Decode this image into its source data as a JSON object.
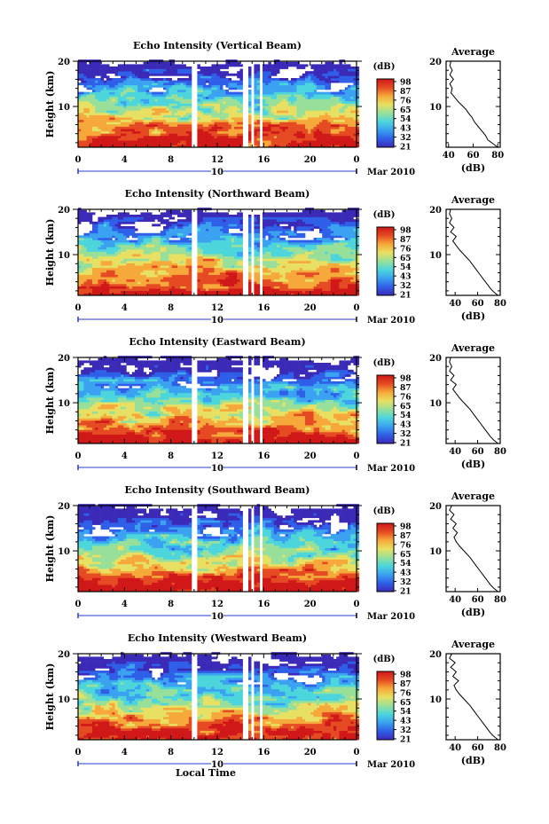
{
  "chart_data": {
    "type": "heatmap",
    "panels": [
      {
        "title": "Echo Intensity (Vertical Beam)",
        "profile_title": "Average",
        "ylabel": "Height (km)",
        "profile_xlabel": "(dB)",
        "profile_xticks": [
          "40",
          "60",
          "80"
        ],
        "profile_xlim": [
          38,
          82
        ],
        "profile": [
          [
            80,
            1.0
          ],
          [
            76,
            1.8
          ],
          [
            72,
            2.6
          ],
          [
            70,
            3.6
          ],
          [
            67,
            4.6
          ],
          [
            64,
            5.6
          ],
          [
            61,
            6.6
          ],
          [
            59,
            7.6
          ],
          [
            56,
            8.6
          ],
          [
            54,
            9.4
          ],
          [
            51,
            10.2
          ],
          [
            48,
            11.0
          ],
          [
            45,
            12.0
          ],
          [
            42,
            13.0
          ],
          [
            43,
            14.0
          ],
          [
            41,
            15.0
          ],
          [
            44,
            16.0
          ],
          [
            41,
            17.0
          ],
          [
            43,
            18.0
          ],
          [
            41,
            19.0
          ],
          [
            42,
            20.0
          ]
        ]
      },
      {
        "title": "Echo Intensity (Northward Beam)",
        "profile_title": "Average",
        "ylabel": "Height (km)",
        "profile_xlabel": "(dB)",
        "profile_xticks": [
          "40",
          "60",
          "80"
        ],
        "profile_xlim": [
          32,
          80
        ],
        "profile": [
          [
            78,
            1.0
          ],
          [
            74,
            1.8
          ],
          [
            71,
            2.6
          ],
          [
            68,
            3.6
          ],
          [
            65,
            4.6
          ],
          [
            62,
            5.6
          ],
          [
            59,
            6.6
          ],
          [
            56,
            7.6
          ],
          [
            53,
            8.6
          ],
          [
            50,
            9.4
          ],
          [
            47,
            10.2
          ],
          [
            44,
            11.0
          ],
          [
            41,
            12.0
          ],
          [
            38,
            13.0
          ],
          [
            41,
            14.0
          ],
          [
            36,
            15.0
          ],
          [
            39,
            16.0
          ],
          [
            35,
            17.0
          ],
          [
            37,
            18.0
          ],
          [
            35,
            19.0
          ],
          [
            36,
            20.0
          ]
        ]
      },
      {
        "title": "Echo Intensity (Eastward Beam)",
        "profile_title": "Average",
        "ylabel": "Height (km)",
        "profile_xlabel": "(dB)",
        "profile_xticks": [
          "40",
          "60",
          "80"
        ],
        "profile_xlim": [
          32,
          80
        ],
        "profile": [
          [
            78,
            1.0
          ],
          [
            74,
            1.8
          ],
          [
            71,
            2.6
          ],
          [
            68,
            3.6
          ],
          [
            65,
            4.6
          ],
          [
            62,
            5.6
          ],
          [
            59,
            6.6
          ],
          [
            56,
            7.6
          ],
          [
            53,
            8.6
          ],
          [
            50,
            9.4
          ],
          [
            47,
            10.2
          ],
          [
            44,
            11.0
          ],
          [
            41,
            12.0
          ],
          [
            38,
            13.0
          ],
          [
            41,
            14.0
          ],
          [
            36,
            15.0
          ],
          [
            39,
            16.0
          ],
          [
            35,
            17.0
          ],
          [
            37,
            18.0
          ],
          [
            35,
            19.0
          ],
          [
            36,
            20.0
          ]
        ]
      },
      {
        "title": "Echo Intensity (Southward Beam)",
        "profile_title": "Average",
        "ylabel": "Height (km)",
        "profile_xlabel": "(dB)",
        "profile_xticks": [
          "40",
          "60",
          "80"
        ],
        "profile_xlim": [
          32,
          80
        ],
        "profile": [
          [
            78,
            1.0
          ],
          [
            74,
            1.8
          ],
          [
            71,
            2.6
          ],
          [
            68,
            3.6
          ],
          [
            65,
            4.6
          ],
          [
            62,
            5.6
          ],
          [
            59,
            6.6
          ],
          [
            56,
            7.6
          ],
          [
            53,
            8.6
          ],
          [
            50,
            9.4
          ],
          [
            47,
            10.2
          ],
          [
            44,
            11.0
          ],
          [
            41,
            12.0
          ],
          [
            39,
            13.0
          ],
          [
            42,
            14.0
          ],
          [
            38,
            15.0
          ],
          [
            41,
            16.0
          ],
          [
            36,
            17.0
          ],
          [
            39,
            18.0
          ],
          [
            35,
            19.0
          ],
          [
            37,
            20.0
          ]
        ]
      },
      {
        "title": "Echo Intensity (Westward Beam)",
        "profile_title": "Average",
        "ylabel": "Height (km)",
        "profile_xlabel": "(dB)",
        "profile_xticks": [
          "40",
          "60",
          "80"
        ],
        "profile_xlim": [
          32,
          80
        ],
        "profile": [
          [
            78,
            1.0
          ],
          [
            74,
            1.8
          ],
          [
            71,
            2.6
          ],
          [
            68,
            3.6
          ],
          [
            65,
            4.6
          ],
          [
            62,
            5.6
          ],
          [
            59,
            6.6
          ],
          [
            56,
            7.6
          ],
          [
            53,
            8.6
          ],
          [
            50,
            9.4
          ],
          [
            47,
            10.2
          ],
          [
            44,
            11.0
          ],
          [
            41,
            12.0
          ],
          [
            39,
            13.0
          ],
          [
            43,
            14.0
          ],
          [
            38,
            15.0
          ],
          [
            41,
            16.0
          ],
          [
            36,
            17.0
          ],
          [
            40,
            18.0
          ],
          [
            35,
            19.0
          ],
          [
            37,
            20.0
          ]
        ]
      }
    ],
    "x_ticks": [
      "0",
      "4",
      "8",
      "12",
      "16",
      "20",
      "0"
    ],
    "xlim": [
      0,
      24
    ],
    "ylim": [
      1,
      20
    ],
    "y_ticks": [
      "20",
      "10"
    ],
    "date_tick": "10",
    "date_label": "Mar 2010",
    "xlabel": "Local Time",
    "colorbar_title": "(dB)",
    "colorbar_ticks": [
      "98",
      "87",
      "76",
      "65",
      "54",
      "43",
      "32",
      "21"
    ],
    "gap_times": [
      10.0,
      14.4,
      15.0,
      15.7
    ],
    "colors": {
      "scale": [
        "#3b2ab8",
        "#2f5fe8",
        "#3aa2f0",
        "#4cd6dc",
        "#98e09a",
        "#e8e062",
        "#f6a83a",
        "#e54a22",
        "#d01818"
      ]
    }
  }
}
